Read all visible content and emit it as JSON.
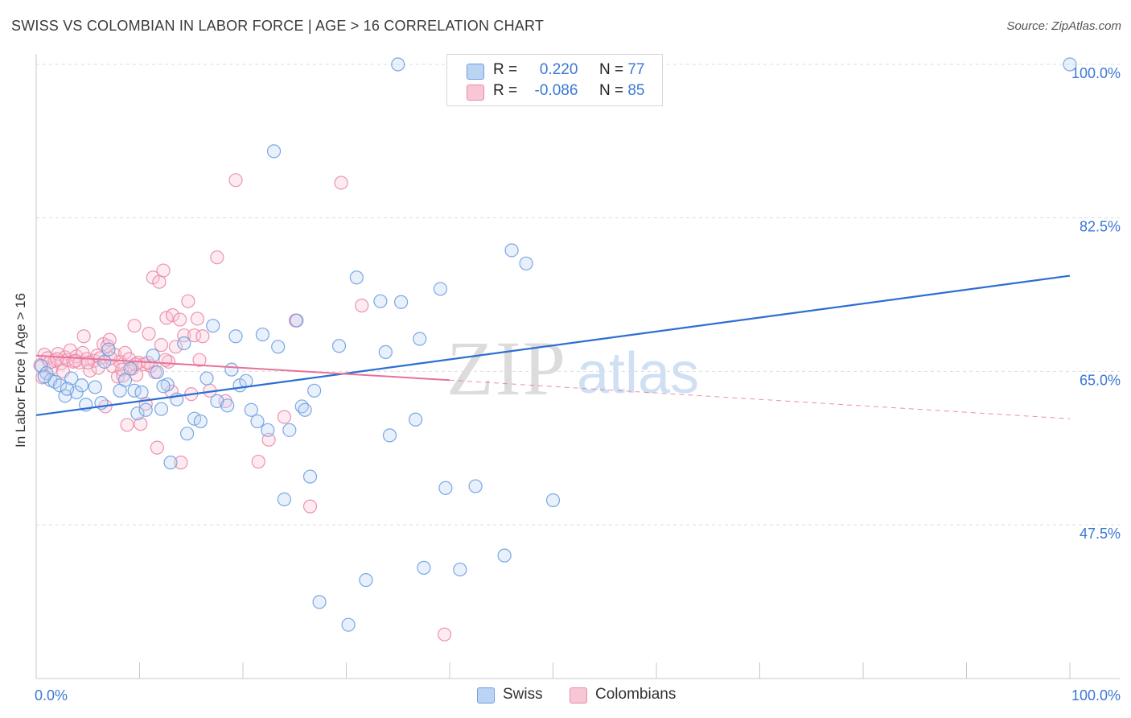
{
  "title": "SWISS VS COLOMBIAN IN LABOR FORCE | AGE > 16 CORRELATION CHART",
  "source": "Source: ZipAtlas.com",
  "watermark": {
    "zip": "ZIP",
    "atlas": "atlas"
  },
  "legend": {
    "swiss": {
      "r_label": "R =",
      "r_value": "0.220",
      "n_label": "N =",
      "n_value": "77"
    },
    "colombians": {
      "r_label": "R =",
      "r_value": "-0.086",
      "n_label": "N =",
      "n_value": "85"
    }
  },
  "colors": {
    "swiss": "#6d9ee0",
    "swiss_fill": "#bcd4f3",
    "swiss_line": "#2c6fd1",
    "colombians": "#e98aa7",
    "colombians_fill": "#f8c7d6",
    "colombians_line": "#e8719a",
    "axis_text": "#3b78d4"
  },
  "chart_data": {
    "type": "scatter",
    "title": "SWISS VS COLOMBIAN IN LABOR FORCE | AGE > 16 CORRELATION CHART",
    "xlabel": "",
    "ylabel": "In Labor Force | Age > 16",
    "xlim": [
      0,
      100
    ],
    "ylim": [
      32.5,
      102
    ],
    "x_tick_labels": [
      "0.0%",
      "100.0%"
    ],
    "y_ticks": [
      47.5,
      65.0,
      82.5,
      100.0
    ],
    "y_tick_labels": [
      "47.5%",
      "65.0%",
      "82.5%",
      "100.0%"
    ],
    "grid": true,
    "legend_placement": "bottom-center",
    "series": [
      {
        "name": "Swiss",
        "r": 0.22,
        "n": 77,
        "trend": {
          "x0": 0,
          "y0": 60.0,
          "x1": 100,
          "y1": 75.9
        },
        "points": [
          [
            0.5,
            65.6
          ],
          [
            1.0,
            64.8
          ],
          [
            1.4,
            64.0
          ],
          [
            1.8,
            63.8
          ],
          [
            2.3,
            63.4
          ],
          [
            2.8,
            62.2
          ],
          [
            3.4,
            64.2
          ],
          [
            3.9,
            62.6
          ],
          [
            4.4,
            63.4
          ],
          [
            4.8,
            61.2
          ],
          [
            5.7,
            63.2
          ],
          [
            6.3,
            61.4
          ],
          [
            6.6,
            66.1
          ],
          [
            7.0,
            67.5
          ],
          [
            8.1,
            62.8
          ],
          [
            8.6,
            64.0
          ],
          [
            9.1,
            65.3
          ],
          [
            9.5,
            62.8
          ],
          [
            9.8,
            60.2
          ],
          [
            10.2,
            62.6
          ],
          [
            10.6,
            60.6
          ],
          [
            11.3,
            66.8
          ],
          [
            11.7,
            64.9
          ],
          [
            12.1,
            60.7
          ],
          [
            12.7,
            63.5
          ],
          [
            13.0,
            54.6
          ],
          [
            13.6,
            61.8
          ],
          [
            14.3,
            68.2
          ],
          [
            14.6,
            57.9
          ],
          [
            15.3,
            59.6
          ],
          [
            15.9,
            59.3
          ],
          [
            16.5,
            64.2
          ],
          [
            17.1,
            70.2
          ],
          [
            17.5,
            61.6
          ],
          [
            18.5,
            61.1
          ],
          [
            18.9,
            65.2
          ],
          [
            19.3,
            69.0
          ],
          [
            19.7,
            63.4
          ],
          [
            20.3,
            63.9
          ],
          [
            20.8,
            60.6
          ],
          [
            21.4,
            59.3
          ],
          [
            21.9,
            69.2
          ],
          [
            22.4,
            58.3
          ],
          [
            23.0,
            90.1
          ],
          [
            23.4,
            67.8
          ],
          [
            24.0,
            50.4
          ],
          [
            24.5,
            58.3
          ],
          [
            25.2,
            70.8
          ],
          [
            25.7,
            61.0
          ],
          [
            26.0,
            60.6
          ],
          [
            26.5,
            53.0
          ],
          [
            26.9,
            62.8
          ],
          [
            27.4,
            38.7
          ],
          [
            29.3,
            67.9
          ],
          [
            30.2,
            36.1
          ],
          [
            31.0,
            75.7
          ],
          [
            31.9,
            41.2
          ],
          [
            33.3,
            73.0
          ],
          [
            33.8,
            67.2
          ],
          [
            34.2,
            57.7
          ],
          [
            35.0,
            100.0
          ],
          [
            35.3,
            72.9
          ],
          [
            36.7,
            59.5
          ],
          [
            37.1,
            68.7
          ],
          [
            37.5,
            42.6
          ],
          [
            39.1,
            74.4
          ],
          [
            39.6,
            51.7
          ],
          [
            41.0,
            42.4
          ],
          [
            42.5,
            51.9
          ],
          [
            45.3,
            44.0
          ],
          [
            46.0,
            78.8
          ],
          [
            47.4,
            77.3
          ],
          [
            50.0,
            50.3
          ],
          [
            100.0,
            100.0
          ],
          [
            0.8,
            64.4
          ],
          [
            3.0,
            63.0
          ],
          [
            12.3,
            63.3
          ]
        ]
      },
      {
        "name": "Colombians",
        "r": -0.086,
        "n": 85,
        "trend": {
          "x0": 0,
          "y0": 66.8,
          "x1": 40,
          "y1": 64.0,
          "dash_x1": 100,
          "dash_y1": 59.6
        },
        "points": [
          [
            0.4,
            65.7
          ],
          [
            0.8,
            66.9
          ],
          [
            1.1,
            66.5
          ],
          [
            1.5,
            65.4
          ],
          [
            1.8,
            66.2
          ],
          [
            2.1,
            67.0
          ],
          [
            2.4,
            65.9
          ],
          [
            2.8,
            66.6
          ],
          [
            3.0,
            66.3
          ],
          [
            3.3,
            67.4
          ],
          [
            3.6,
            66.1
          ],
          [
            3.9,
            66.7
          ],
          [
            4.2,
            66.0
          ],
          [
            4.5,
            67.1
          ],
          [
            4.6,
            69.0
          ],
          [
            4.9,
            66.4
          ],
          [
            5.2,
            65.1
          ],
          [
            5.6,
            66.2
          ],
          [
            5.9,
            66.8
          ],
          [
            6.2,
            66.5
          ],
          [
            6.5,
            68.1
          ],
          [
            6.7,
            61.0
          ],
          [
            6.9,
            67.9
          ],
          [
            7.1,
            68.6
          ],
          [
            7.4,
            65.6
          ],
          [
            7.6,
            66.9
          ],
          [
            7.9,
            64.4
          ],
          [
            8.1,
            66.1
          ],
          [
            8.3,
            65.2
          ],
          [
            8.6,
            67.1
          ],
          [
            8.8,
            58.9
          ],
          [
            9.0,
            66.4
          ],
          [
            9.3,
            65.3
          ],
          [
            9.5,
            70.2
          ],
          [
            9.7,
            64.6
          ],
          [
            9.9,
            66.0
          ],
          [
            10.1,
            59.0
          ],
          [
            10.4,
            65.8
          ],
          [
            10.6,
            61.3
          ],
          [
            10.9,
            69.3
          ],
          [
            11.1,
            65.6
          ],
          [
            11.3,
            75.7
          ],
          [
            11.5,
            64.9
          ],
          [
            11.7,
            56.3
          ],
          [
            11.9,
            75.2
          ],
          [
            12.1,
            68.0
          ],
          [
            12.3,
            76.5
          ],
          [
            12.6,
            71.1
          ],
          [
            12.8,
            66.1
          ],
          [
            13.1,
            62.7
          ],
          [
            13.2,
            71.4
          ],
          [
            13.5,
            67.8
          ],
          [
            13.9,
            70.9
          ],
          [
            14.3,
            69.1
          ],
          [
            14.7,
            73.0
          ],
          [
            15.0,
            62.4
          ],
          [
            15.3,
            69.1
          ],
          [
            15.6,
            71.0
          ],
          [
            15.8,
            66.3
          ],
          [
            16.1,
            69.0
          ],
          [
            16.8,
            62.8
          ],
          [
            17.5,
            78.0
          ],
          [
            18.3,
            61.6
          ],
          [
            19.3,
            86.8
          ],
          [
            21.5,
            54.7
          ],
          [
            22.5,
            57.2
          ],
          [
            24.0,
            59.8
          ],
          [
            25.1,
            70.8
          ],
          [
            26.5,
            49.6
          ],
          [
            29.5,
            86.5
          ],
          [
            31.5,
            72.5
          ],
          [
            39.5,
            35.0
          ],
          [
            1.3,
            66.0
          ],
          [
            2.6,
            65.0
          ],
          [
            3.8,
            66.2
          ],
          [
            5.0,
            66.0
          ],
          [
            6.0,
            65.4
          ],
          [
            7.2,
            66.5
          ],
          [
            8.4,
            64.5
          ],
          [
            9.6,
            65.8
          ],
          [
            10.8,
            66.0
          ],
          [
            12.5,
            66.3
          ],
          [
            14.0,
            54.6
          ],
          [
            0.6,
            64.3
          ],
          [
            2.0,
            66.4
          ]
        ]
      }
    ]
  }
}
